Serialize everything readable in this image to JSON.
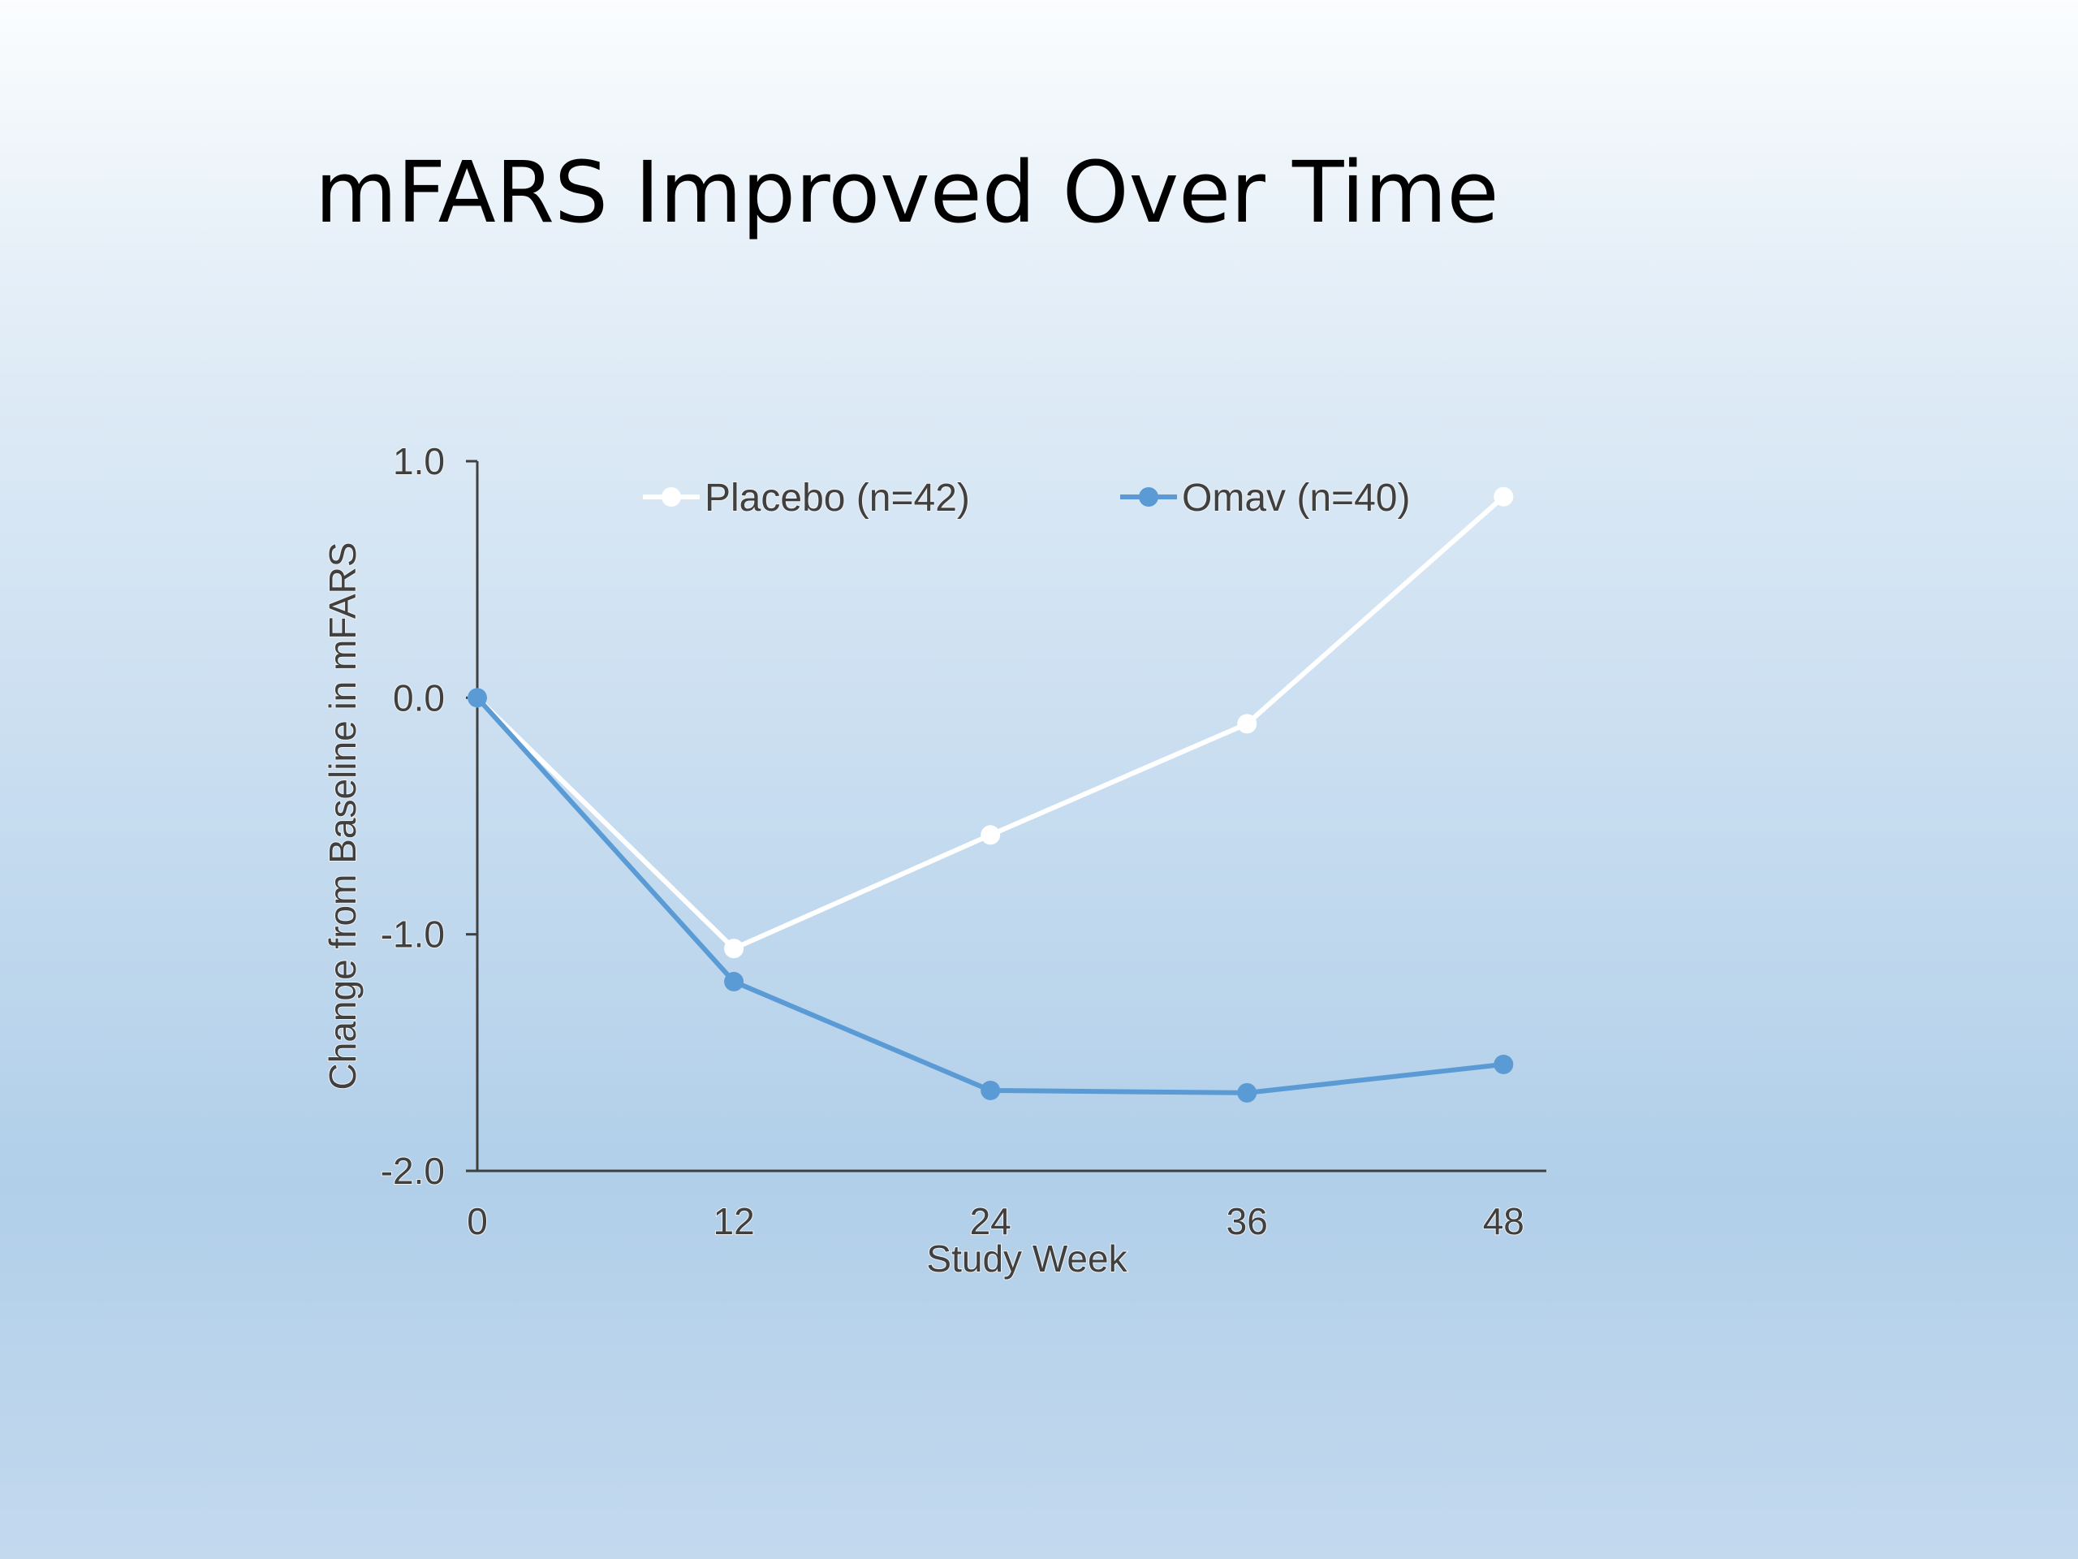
{
  "slide": {
    "title": "mFARS Improved Over Time"
  },
  "chart_data": {
    "type": "line",
    "title": "",
    "xlabel": "Study Week",
    "ylabel": "Change from Baseline in mFARS",
    "x": [
      0,
      12,
      24,
      36,
      48
    ],
    "xlim": [
      0,
      50
    ],
    "ylim": [
      -2.0,
      1.0
    ],
    "x_ticks": [
      0,
      12,
      24,
      36,
      48
    ],
    "y_ticks": [
      1.0,
      0.0,
      -1.0,
      -2.0
    ],
    "x_tick_labels": [
      "0",
      "12",
      "24",
      "36",
      "48"
    ],
    "y_tick_labels": [
      "1.0",
      "0.0",
      "-1.0",
      "-2.0"
    ],
    "grid": false,
    "legend_position": "top",
    "series": [
      {
        "name": "Placebo (n=42)",
        "color": "#ffffff",
        "values": [
          0.0,
          -1.06,
          -0.58,
          -0.11,
          0.85
        ]
      },
      {
        "name": "Omav (n=40)",
        "color": "#5b9bd5",
        "values": [
          0.0,
          -1.2,
          -1.66,
          -1.67,
          -1.55
        ]
      }
    ]
  }
}
